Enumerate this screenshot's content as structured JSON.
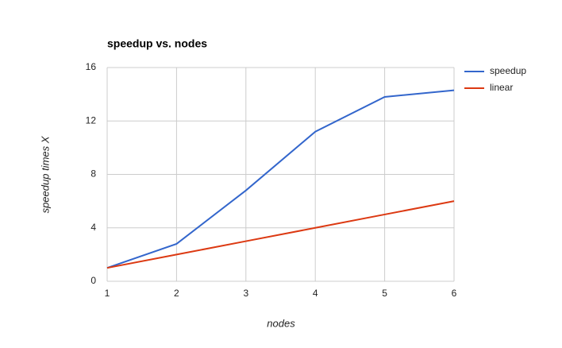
{
  "chart_data": {
    "type": "line",
    "title": "speedup vs. nodes",
    "x_label": "nodes",
    "y_label": "speedup times X",
    "x": [
      1,
      2,
      3,
      4,
      5,
      6
    ],
    "series": [
      {
        "name": "speedup",
        "color": "#3366cc",
        "values": [
          1,
          2.8,
          6.8,
          11.2,
          13.8,
          14.3
        ]
      },
      {
        "name": "linear",
        "color": "#dc3912",
        "values": [
          1,
          2,
          3,
          4,
          5,
          6
        ]
      }
    ],
    "xlim": [
      1,
      6
    ],
    "xticks": [
      1,
      2,
      3,
      4,
      5,
      6
    ],
    "ylim": [
      0,
      16
    ],
    "yticks": [
      0,
      4,
      8,
      12,
      16
    ],
    "grid": true,
    "legend": "right"
  }
}
